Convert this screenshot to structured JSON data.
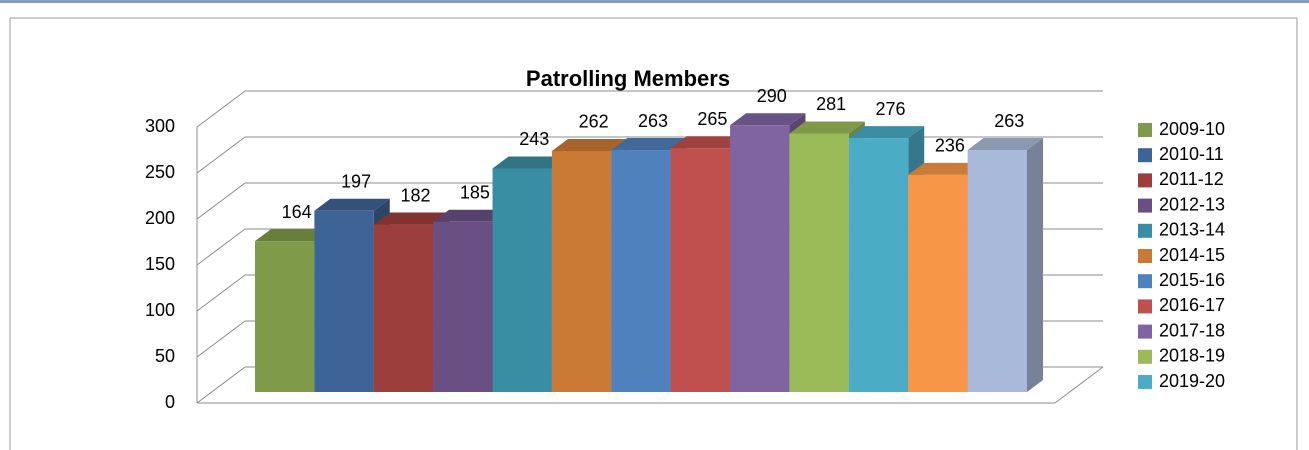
{
  "chart_data": {
    "type": "bar3d",
    "title": "Patrolling Members",
    "series": [
      {
        "name": "2009-10",
        "color": "#7f9a48",
        "values": [
          164
        ]
      },
      {
        "name": "2010-11",
        "color": "#3e6396",
        "values": [
          197
        ]
      },
      {
        "name": "2011-12",
        "color": "#9c3e3c",
        "values": [
          182
        ]
      },
      {
        "name": "2012-13",
        "color": "#6a4f85",
        "values": [
          185
        ]
      },
      {
        "name": "2013-14",
        "color": "#3a8ea3",
        "values": [
          243
        ]
      },
      {
        "name": "2014-15",
        "color": "#cb7a35",
        "values": [
          262
        ]
      },
      {
        "name": "2015-16",
        "color": "#4f81bd",
        "values": [
          263
        ]
      },
      {
        "name": "2016-17",
        "color": "#c0504d",
        "values": [
          265
        ]
      },
      {
        "name": "2017-18",
        "color": "#8064a2",
        "values": [
          290
        ]
      },
      {
        "name": "2018-19",
        "color": "#9bbb59",
        "values": [
          281
        ]
      },
      {
        "name": "2019-20",
        "color": "#4bacc6",
        "values": [
          276
        ]
      },
      {
        "name": null,
        "color": "#f79646",
        "values": [
          236
        ]
      },
      {
        "name": null,
        "color": "#a9b9d9",
        "values": [
          263
        ]
      }
    ],
    "ylim": [
      0,
      300
    ],
    "yticks": [
      0,
      50,
      100,
      150,
      200,
      250,
      300
    ],
    "grid": true,
    "legend": "right"
  }
}
